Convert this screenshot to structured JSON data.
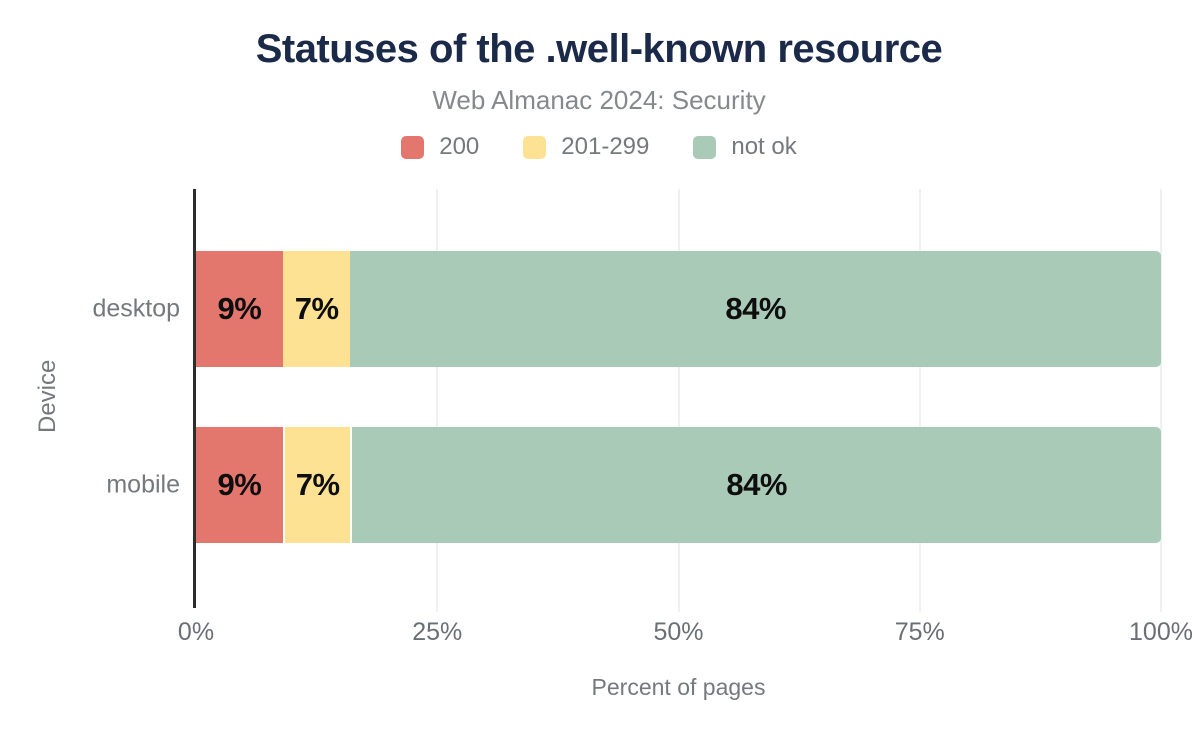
{
  "chart_data": {
    "type": "bar",
    "orientation": "horizontal",
    "stacked": true,
    "title": "Statuses of the .well-known resource",
    "subtitle": "Web Almanac 2024: Security",
    "xlabel": "Percent of pages",
    "ylabel": "Device",
    "categories": [
      "desktop",
      "mobile"
    ],
    "series": [
      {
        "name": "200",
        "color": "#e3766d",
        "values": [
          9,
          9
        ]
      },
      {
        "name": "201-299",
        "color": "#fce292",
        "values": [
          7,
          7
        ]
      },
      {
        "name": "not ok",
        "color": "#a8cab7",
        "values": [
          84,
          84
        ]
      }
    ],
    "data_labels": [
      [
        "9%",
        "7%",
        "84%"
      ],
      [
        "9%",
        "7%",
        "84%"
      ]
    ],
    "xlim": [
      0,
      100
    ],
    "x_ticks": [
      "0%",
      "25%",
      "50%",
      "75%",
      "100%"
    ],
    "x_tick_values": [
      0,
      25,
      50,
      75,
      100
    ],
    "grid": "vertical",
    "legend_position": "top",
    "colors": {
      "title": "#1b2a49",
      "subtitle_text": "#85888d",
      "axis_text": "#75797e",
      "tick_text": "#6a6f75",
      "data_label": "#0e0e0e",
      "gridline": "#f0f0f0",
      "axis_line": "#2d2d2d"
    }
  }
}
